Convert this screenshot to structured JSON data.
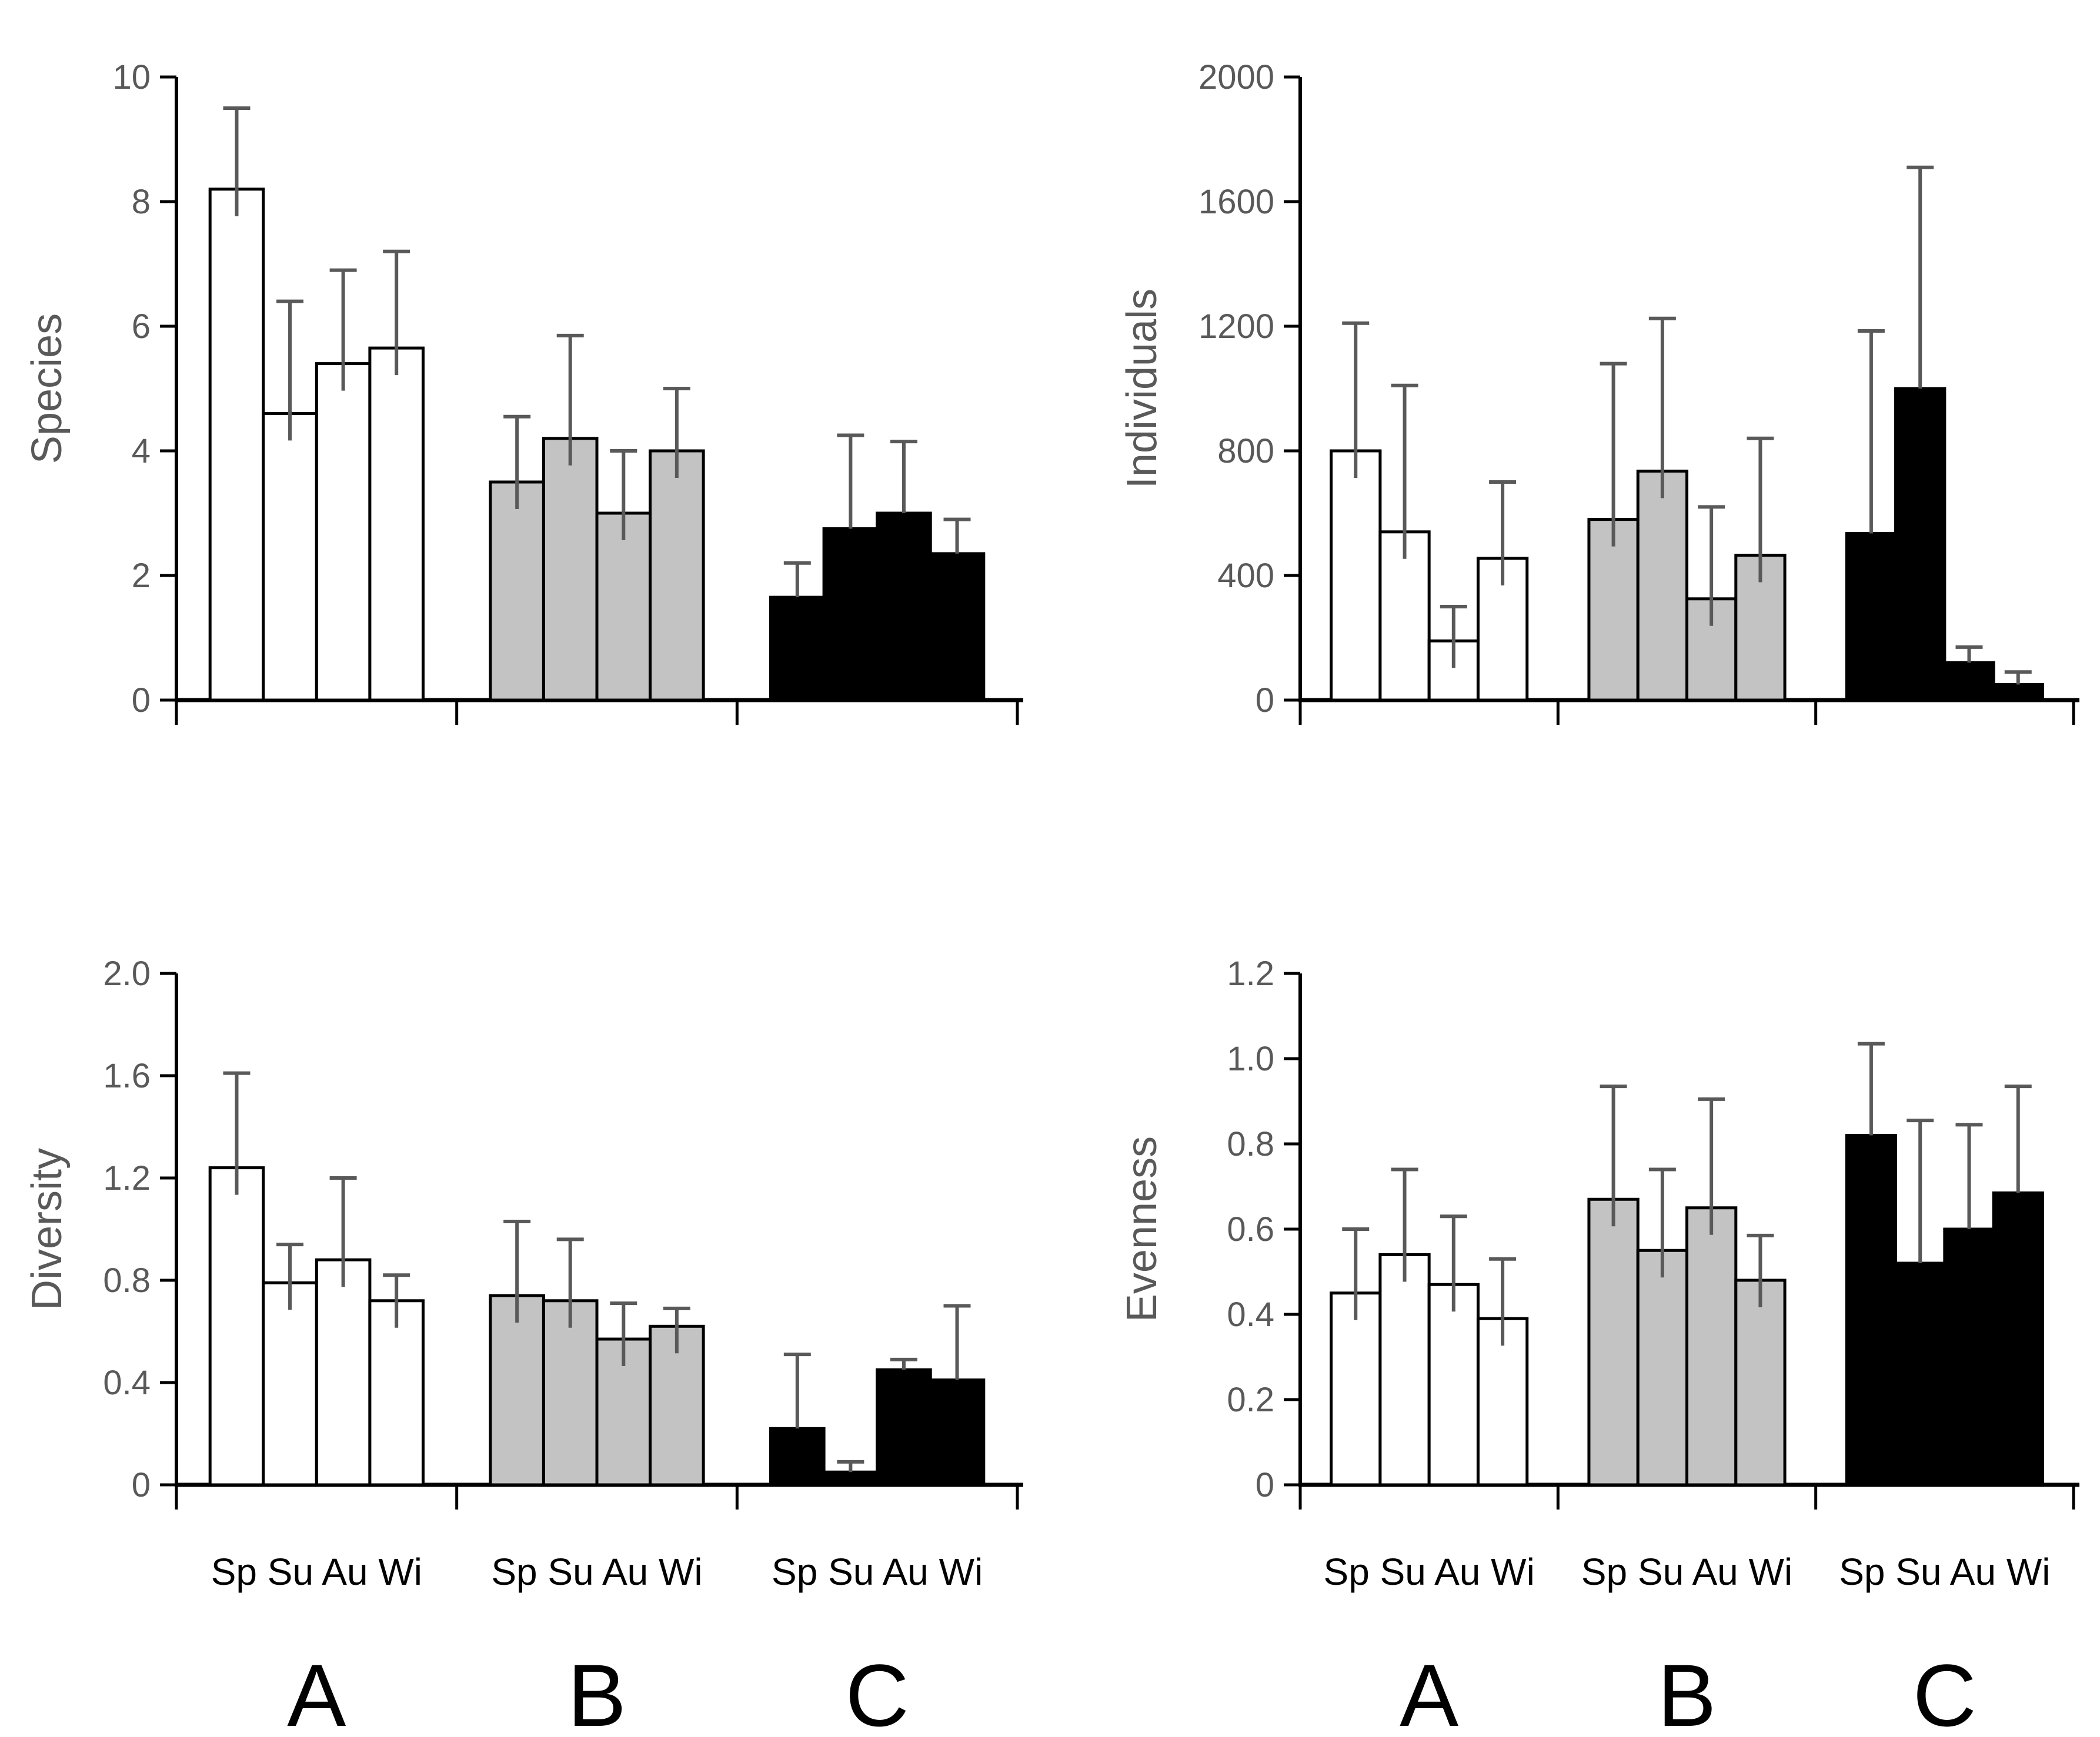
{
  "colors": {
    "bar_white": "#ffffff",
    "bar_gray": "#c3c3c3",
    "bar_black": "#000000",
    "bar_outline": "#000000",
    "error_bar": "#595959",
    "axis": "#000000",
    "tick_label": "#595959",
    "axis_title": "#595959",
    "x_label": "#000000"
  },
  "groups": [
    "A",
    "B",
    "C"
  ],
  "seasons": [
    "Sp",
    "Su",
    "Au",
    "Wi"
  ],
  "chart_data": [
    {
      "type": "bar",
      "title": "",
      "xlabel": "",
      "ylabel": "Species",
      "ylim": [
        0,
        10
      ],
      "yticks": [
        0,
        2,
        4,
        6,
        8,
        10
      ],
      "ytick_labels": [
        "0",
        "2",
        "4",
        "6",
        "8",
        "10"
      ],
      "categories": [
        "Sp",
        "Su",
        "Au",
        "Wi"
      ],
      "grid": false,
      "legend": "none",
      "show_x_labels": false,
      "series": [
        {
          "name": "A",
          "fill": "#ffffff",
          "values": [
            8.2,
            4.6,
            5.4,
            5.65
          ],
          "errors_plus": [
            1.3,
            1.8,
            1.5,
            1.55
          ]
        },
        {
          "name": "B",
          "fill": "#c3c3c3",
          "values": [
            3.5,
            4.2,
            3.0,
            4.0
          ],
          "errors_plus": [
            1.05,
            1.65,
            1.0,
            1.0
          ]
        },
        {
          "name": "C",
          "fill": "#000000",
          "values": [
            1.65,
            2.75,
            3.0,
            2.35
          ],
          "errors_plus": [
            0.55,
            1.5,
            1.15,
            0.55
          ]
        }
      ]
    },
    {
      "type": "bar",
      "title": "",
      "xlabel": "",
      "ylabel": "Individuals",
      "ylim": [
        0,
        2000
      ],
      "yticks": [
        0,
        400,
        800,
        1200,
        1600,
        2000
      ],
      "ytick_labels": [
        "0",
        "400",
        "800",
        "1200",
        "1600",
        "2000"
      ],
      "categories": [
        "Sp",
        "Su",
        "Au",
        "Wi"
      ],
      "grid": false,
      "legend": "none",
      "show_x_labels": false,
      "series": [
        {
          "name": "A",
          "fill": "#ffffff",
          "values": [
            800,
            540,
            190,
            455
          ],
          "errors_plus": [
            410,
            470,
            110,
            245
          ]
        },
        {
          "name": "B",
          "fill": "#c3c3c3",
          "values": [
            580,
            735,
            325,
            465
          ],
          "errors_plus": [
            500,
            490,
            295,
            375
          ]
        },
        {
          "name": "C",
          "fill": "#000000",
          "values": [
            535,
            1000,
            120,
            50
          ],
          "errors_plus": [
            650,
            710,
            50,
            40
          ]
        }
      ]
    },
    {
      "type": "bar",
      "title": "",
      "xlabel": "",
      "ylabel": "Diversity",
      "ylim": [
        0,
        2.0
      ],
      "yticks": [
        0,
        0.4,
        0.8,
        1.2,
        1.6,
        2.0
      ],
      "ytick_labels": [
        "0",
        "0.4",
        "0.8",
        "1.2",
        "1.6",
        "2.0"
      ],
      "categories": [
        "Sp",
        "Su",
        "Au",
        "Wi"
      ],
      "grid": false,
      "legend": "none",
      "show_x_labels": true,
      "group_labels": [
        "A",
        "B",
        "C"
      ],
      "series": [
        {
          "name": "A",
          "fill": "#ffffff",
          "values": [
            1.24,
            0.79,
            0.88,
            0.72
          ],
          "errors_plus": [
            0.37,
            0.15,
            0.32,
            0.1
          ]
        },
        {
          "name": "B",
          "fill": "#c3c3c3",
          "values": [
            0.74,
            0.72,
            0.57,
            0.62
          ],
          "errors_plus": [
            0.29,
            0.24,
            0.14,
            0.07
          ]
        },
        {
          "name": "C",
          "fill": "#000000",
          "values": [
            0.22,
            0.05,
            0.45,
            0.41
          ],
          "errors_plus": [
            0.29,
            0.04,
            0.04,
            0.29
          ]
        }
      ]
    },
    {
      "type": "bar",
      "title": "",
      "xlabel": "",
      "ylabel": "Evenness",
      "ylim": [
        0,
        1.2
      ],
      "yticks": [
        0,
        0.2,
        0.4,
        0.6,
        0.8,
        1.0,
        1.2
      ],
      "ytick_labels": [
        "0",
        "0.2",
        "0.4",
        "0.6",
        "0.8",
        "1.0",
        "1.2"
      ],
      "categories": [
        "Sp",
        "Su",
        "Au",
        "Wi"
      ],
      "grid": false,
      "legend": "none",
      "show_x_labels": true,
      "group_labels": [
        "A",
        "B",
        "C"
      ],
      "series": [
        {
          "name": "A",
          "fill": "#ffffff",
          "values": [
            0.45,
            0.54,
            0.47,
            0.39
          ],
          "errors_plus": [
            0.15,
            0.2,
            0.16,
            0.14
          ]
        },
        {
          "name": "B",
          "fill": "#c3c3c3",
          "values": [
            0.67,
            0.55,
            0.65,
            0.48
          ],
          "errors_plus": [
            0.265,
            0.19,
            0.255,
            0.105
          ]
        },
        {
          "name": "C",
          "fill": "#000000",
          "values": [
            0.82,
            0.52,
            0.6,
            0.685
          ],
          "errors_plus": [
            0.215,
            0.335,
            0.245,
            0.25
          ]
        }
      ]
    }
  ]
}
